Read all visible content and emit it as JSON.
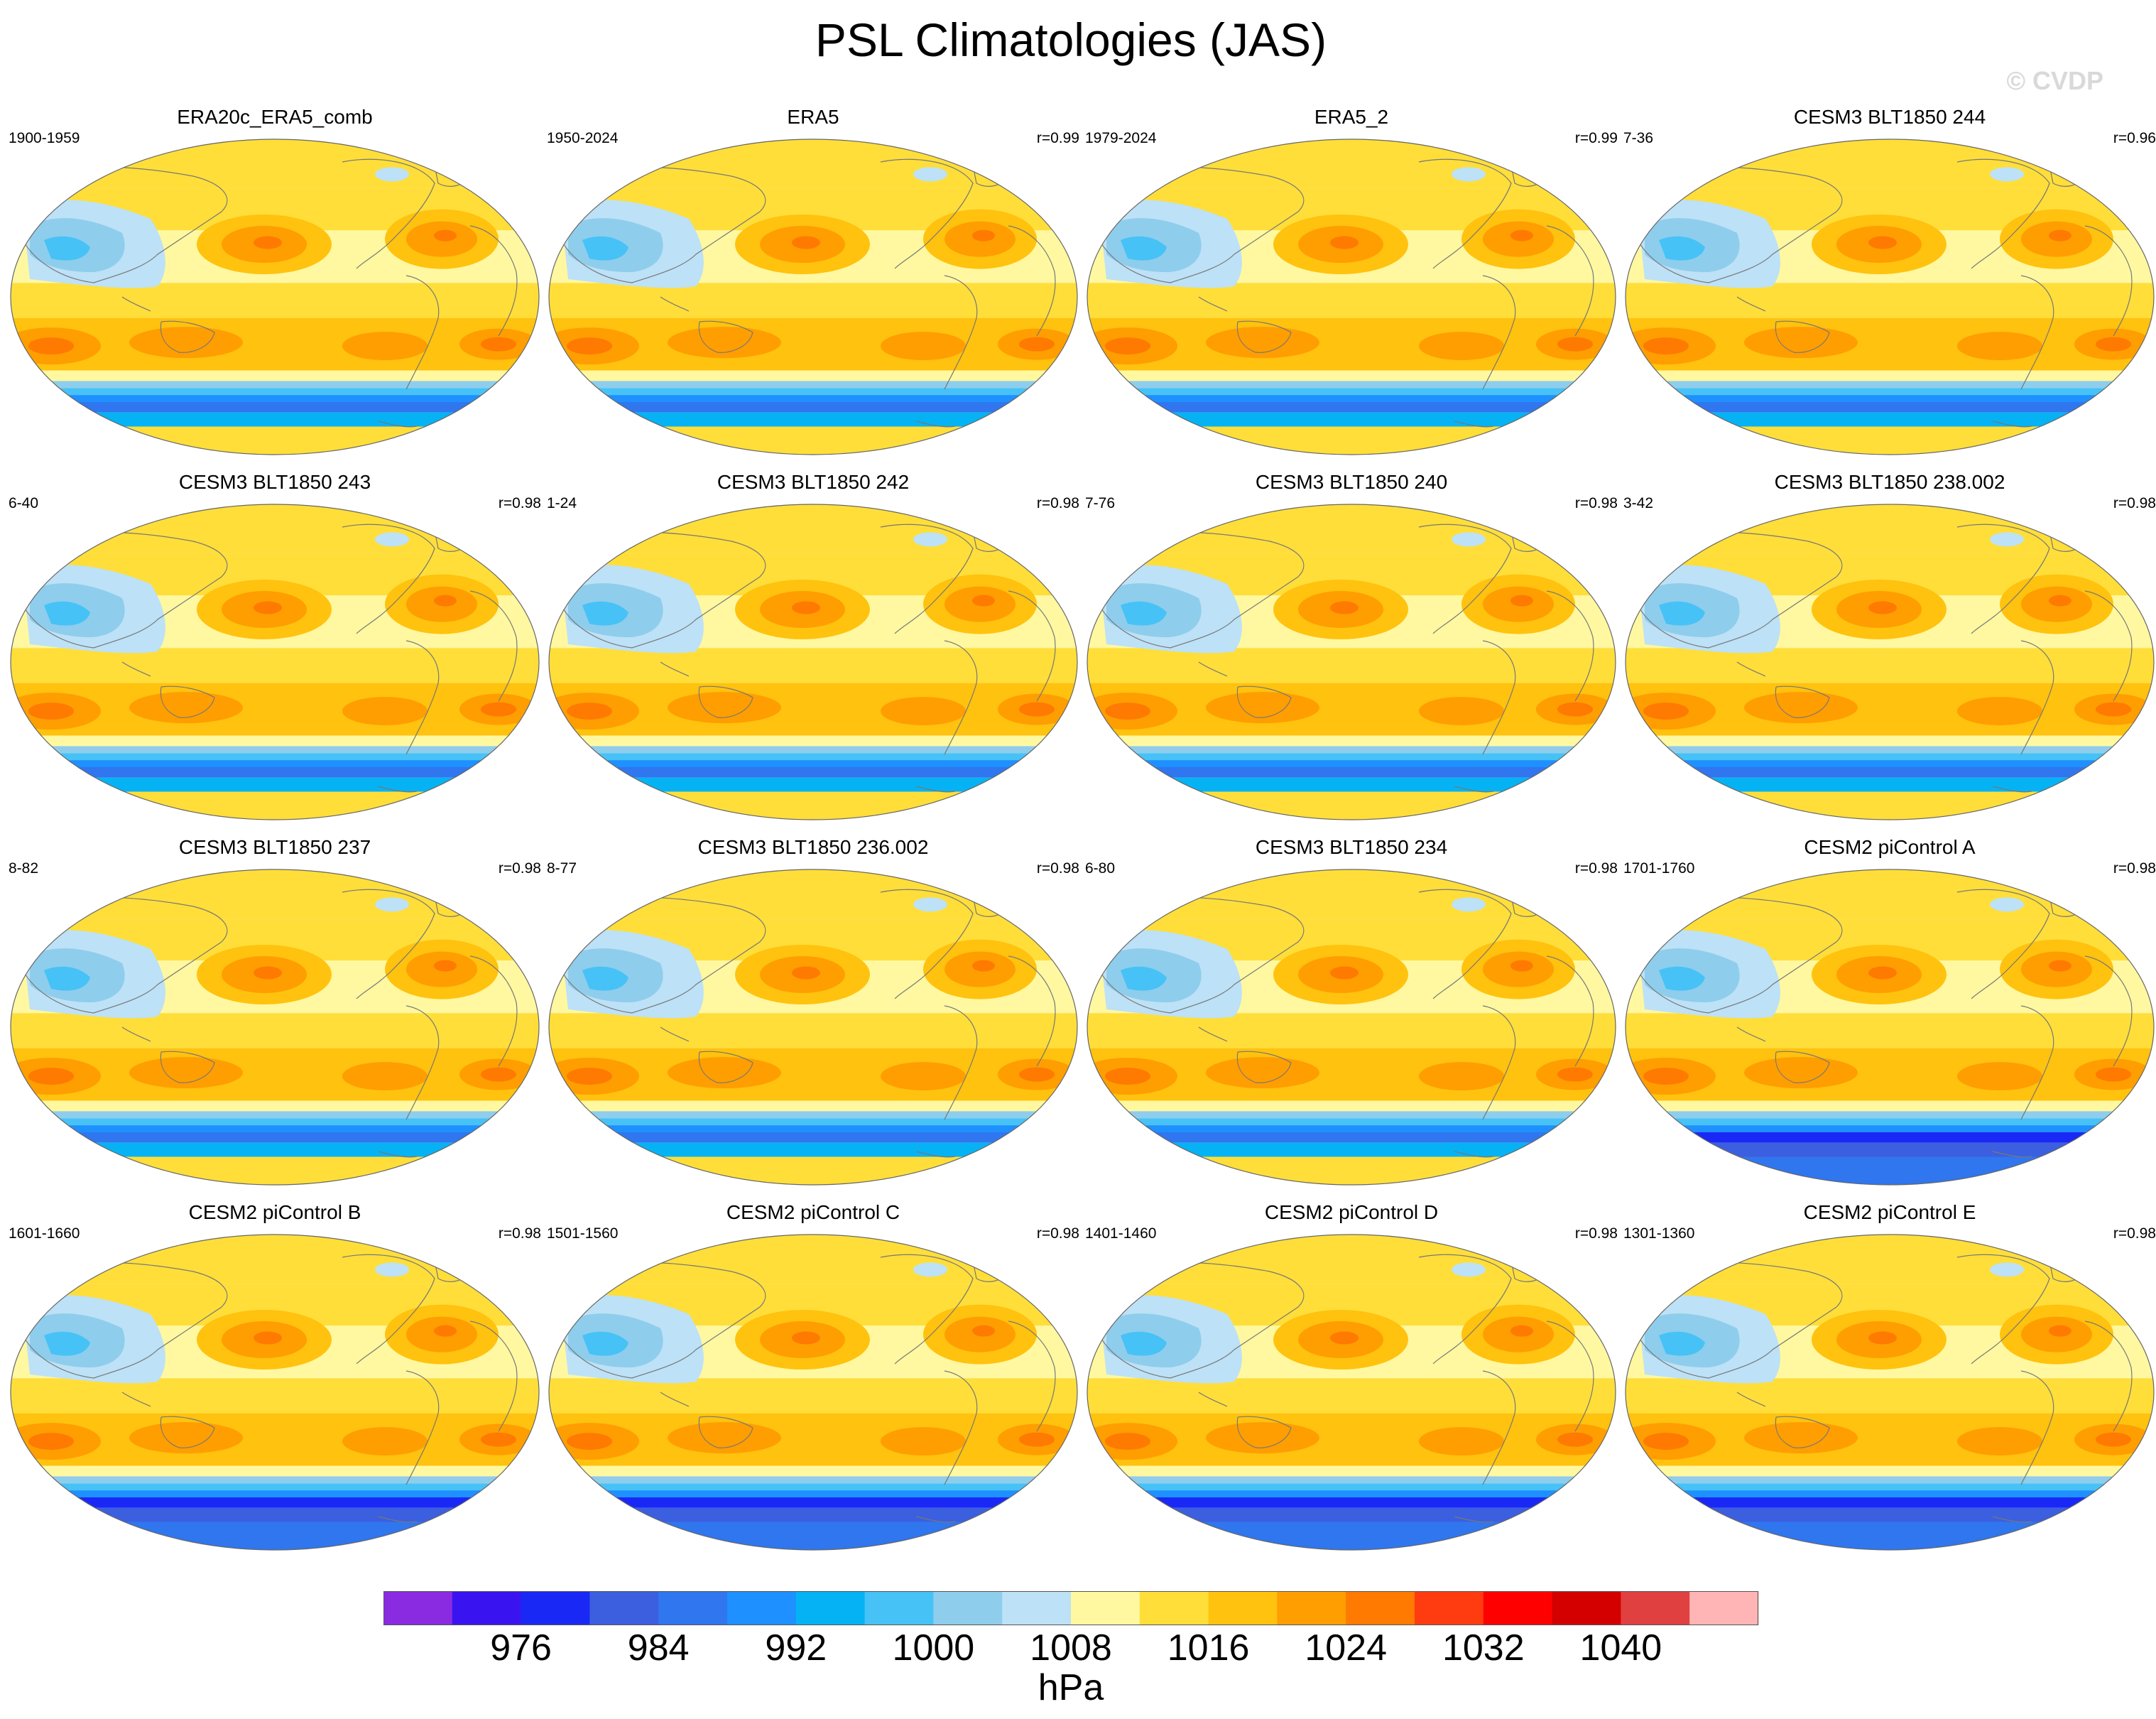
{
  "figure": {
    "title": "PSL Climatologies (JAS)",
    "watermark": "© CVDP",
    "units": "hPa"
  },
  "chart_data": {
    "type": "heatmap",
    "title": "PSL Climatologies (JAS)",
    "variable": "PSL",
    "season": "JAS",
    "units": "hPa",
    "projection": "Robinson (global, Pacific-centered)",
    "colorbar": {
      "levels": [
        972,
        976,
        980,
        984,
        988,
        992,
        996,
        1000,
        1004,
        1008,
        1012,
        1016,
        1020,
        1024,
        1028,
        1032,
        1036,
        1040,
        1044
      ],
      "tick_labels": [
        "976",
        "984",
        "992",
        "1000",
        "1008",
        "1016",
        "1024",
        "1032",
        "1040"
      ],
      "colors": [
        "#8a2be2",
        "#3a14f0",
        "#1a28f5",
        "#3c5fe0",
        "#2f76ef",
        "#1e90ff",
        "#05b3f5",
        "#46c2f6",
        "#8fcdec",
        "#bde1f6",
        "#fff8a0",
        "#ffde3a",
        "#ffc20e",
        "#ff9e00",
        "#ff7a00",
        "#ff3c10",
        "#ff0000",
        "#d40000",
        "#e04040",
        "#ffb5b5"
      ]
    },
    "panels": [
      {
        "title": "ERA20c_ERA5_comb",
        "years": "1900-1959",
        "r": ""
      },
      {
        "title": "ERA5",
        "years": "1950-2024",
        "r": "r=0.99"
      },
      {
        "title": "ERA5_2",
        "years": "1979-2024",
        "r": "r=0.99"
      },
      {
        "title": "CESM3 BLT1850 244",
        "years": "7-36",
        "r": "r=0.96"
      },
      {
        "title": "CESM3 BLT1850 243",
        "years": "6-40",
        "r": "r=0.98"
      },
      {
        "title": "CESM3 BLT1850 242",
        "years": "1-24",
        "r": "r=0.98"
      },
      {
        "title": "CESM3 BLT1850 240",
        "years": "7-76",
        "r": "r=0.98"
      },
      {
        "title": "CESM3 BLT1850 238.002",
        "years": "3-42",
        "r": "r=0.98"
      },
      {
        "title": "CESM3 BLT1850 237",
        "years": "8-82",
        "r": "r=0.98"
      },
      {
        "title": "CESM3 BLT1850 236.002",
        "years": "8-77",
        "r": "r=0.98"
      },
      {
        "title": "CESM3 BLT1850 234",
        "years": "6-80",
        "r": "r=0.98"
      },
      {
        "title": "CESM2 piControl A",
        "years": "1701-1760",
        "r": "r=0.98"
      },
      {
        "title": "CESM2 piControl B",
        "years": "1601-1660",
        "r": "r=0.98"
      },
      {
        "title": "CESM2 piControl C",
        "years": "1501-1560",
        "r": "r=0.98"
      },
      {
        "title": "CESM2 piControl D",
        "years": "1401-1460",
        "r": "r=0.98"
      },
      {
        "title": "CESM2 piControl E",
        "years": "1301-1360",
        "r": "r=0.98"
      }
    ]
  }
}
